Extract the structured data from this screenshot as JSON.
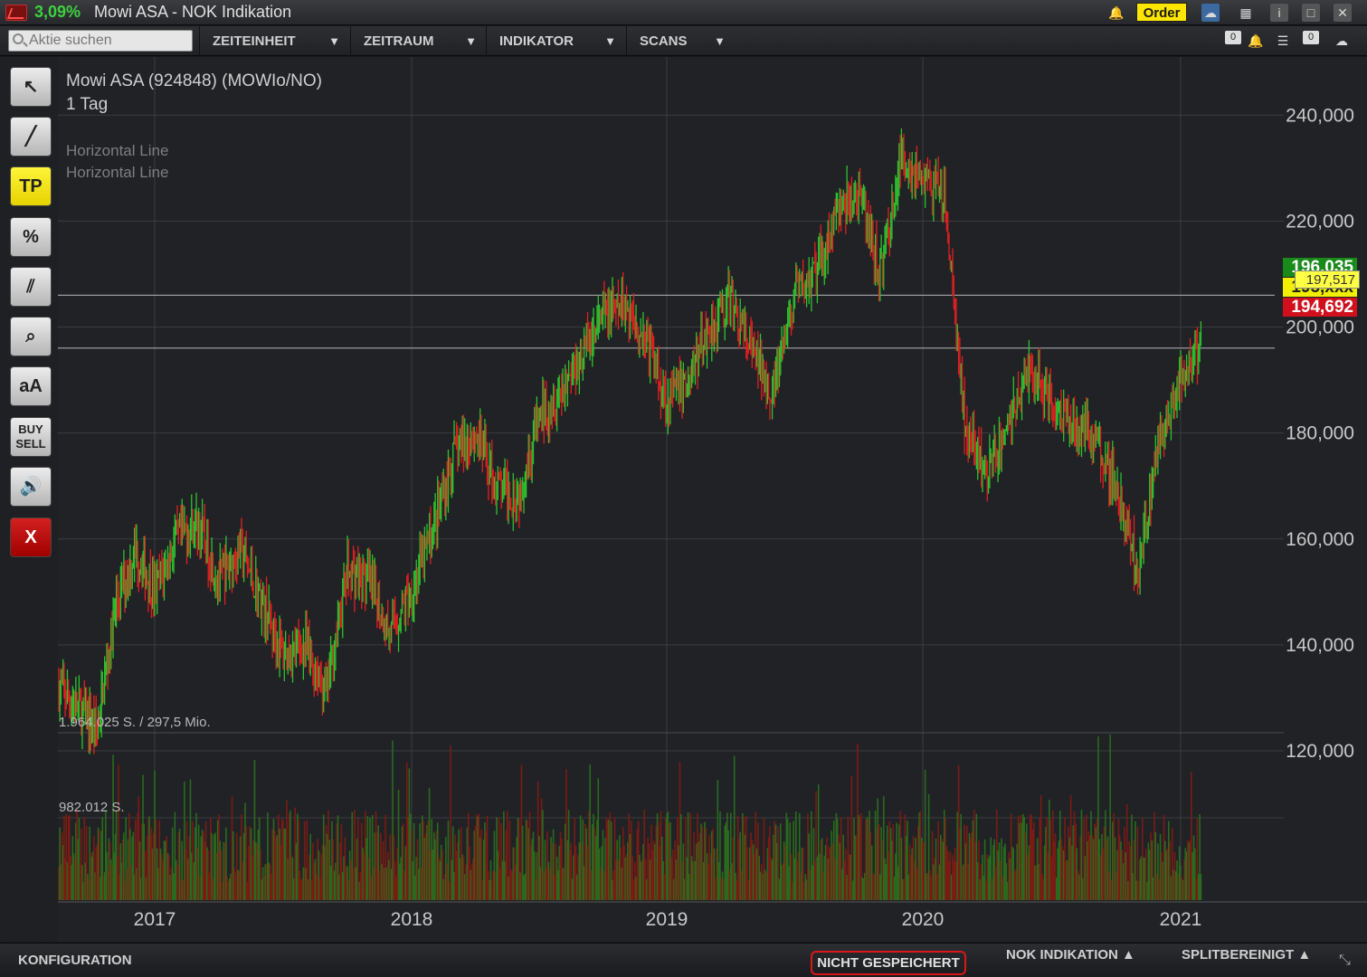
{
  "window": {
    "change_pct": "3,09%",
    "title": "Mowi ASA - NOK Indikation",
    "order_label": "Order"
  },
  "toolbar": {
    "search_placeholder": "Aktie suchen",
    "menus": [
      "ZEITEINHEIT",
      "ZEITRAUM",
      "INDIKATOR",
      "SCANS"
    ],
    "counter_a": "0",
    "counter_b": "0"
  },
  "tools": [
    {
      "name": "pointer-tool",
      "icon": "pointer-icon",
      "label": ""
    },
    {
      "name": "line-tool",
      "icon": "line-icon",
      "label": ""
    },
    {
      "name": "tp-tool",
      "icon": "tp-icon",
      "label": "TP"
    },
    {
      "name": "percent-tool",
      "icon": "percent-icon",
      "label": "%"
    },
    {
      "name": "channel-tool",
      "icon": "parallel-lines-icon",
      "label": ""
    },
    {
      "name": "zoom-tool",
      "icon": "magnifier-icon",
      "label": ""
    },
    {
      "name": "text-tool",
      "icon": "text-icon",
      "label": "aA"
    },
    {
      "name": "buy-sell-tool",
      "icon": "buy-sell-icon",
      "label": "BUY SELL"
    },
    {
      "name": "sound-tool",
      "icon": "speaker-icon",
      "label": ""
    },
    {
      "name": "close-tool",
      "icon": "close-icon",
      "label": "X"
    }
  ],
  "chart": {
    "symbol": "Mowi ASA (924848) (MOWIo/NO)",
    "timeframe": "1 Tag",
    "annotations": [
      "Horizontal Line",
      "Horizontal Line"
    ],
    "volume_top_label": "1.964.025 S. / 297,5 Mio.",
    "volume_mid_label": "982.012 S.",
    "price_tags": {
      "green": "196,035",
      "yellow": "195,xxx",
      "last": "197,517",
      "red": "194,692"
    },
    "colors": {
      "up": "#2ec22e",
      "down": "#e02020",
      "background": "#202226",
      "grid": "#3a3c40"
    }
  },
  "chart_data": {
    "type": "candlestick",
    "title": "Mowi ASA (924848) (MOWIo/NO)",
    "timeframe": "1 Tag",
    "x_ticks": [
      "2017",
      "2018",
      "2019",
      "2020",
      "2021"
    ],
    "y_ticks": [
      "240,000",
      "220,000",
      "200,000",
      "180,000",
      "160,000",
      "140,000",
      "120,000"
    ],
    "ylim": [
      120,
      245
    ],
    "horizontal_lines": [
      206,
      196.035
    ],
    "grid": true,
    "price_path": [
      [
        "2016-08",
        132
      ],
      [
        "2016-09",
        128
      ],
      [
        "2016-10",
        124
      ],
      [
        "2016-11",
        148
      ],
      [
        "2016-12",
        158
      ],
      [
        "2017-01",
        150
      ],
      [
        "2017-02",
        160
      ],
      [
        "2017-03",
        163
      ],
      [
        "2017-04",
        152
      ],
      [
        "2017-05",
        158
      ],
      [
        "2017-06",
        148
      ],
      [
        "2017-07",
        138
      ],
      [
        "2017-08",
        140
      ],
      [
        "2017-09",
        131
      ],
      [
        "2017-10",
        154
      ],
      [
        "2017-11",
        152
      ],
      [
        "2017-12",
        142
      ],
      [
        "2018-01",
        150
      ],
      [
        "2018-02",
        162
      ],
      [
        "2018-03",
        176
      ],
      [
        "2018-04",
        180
      ],
      [
        "2018-05",
        170
      ],
      [
        "2018-06",
        168
      ],
      [
        "2018-07",
        183
      ],
      [
        "2018-08",
        188
      ],
      [
        "2018-09",
        195
      ],
      [
        "2018-10",
        202
      ],
      [
        "2018-11",
        204
      ],
      [
        "2018-12",
        198
      ],
      [
        "2019-01",
        186
      ],
      [
        "2019-02",
        190
      ],
      [
        "2019-03",
        200
      ],
      [
        "2019-04",
        205
      ],
      [
        "2019-05",
        195
      ],
      [
        "2019-06",
        188
      ],
      [
        "2019-07",
        206
      ],
      [
        "2019-08",
        210
      ],
      [
        "2019-09",
        222
      ],
      [
        "2019-10",
        225
      ],
      [
        "2019-11",
        210
      ],
      [
        "2019-12",
        232
      ],
      [
        "2020-01",
        228
      ],
      [
        "2020-02",
        224
      ],
      [
        "2020-03",
        180
      ],
      [
        "2020-04",
        172
      ],
      [
        "2020-05",
        182
      ],
      [
        "2020-06",
        192
      ],
      [
        "2020-07",
        186
      ],
      [
        "2020-08",
        182
      ],
      [
        "2020-09",
        180
      ],
      [
        "2020-10",
        170
      ],
      [
        "2020-11",
        154
      ],
      [
        "2020-12",
        178
      ],
      [
        "2021-01",
        190
      ],
      [
        "2021-02",
        196
      ]
    ],
    "volume_ylim": [
      0,
      1964025
    ]
  },
  "statusbar": {
    "config": "KONFIGURATION",
    "not_saved": "NICHT GESPEICHERT",
    "indication": "NOK INDIKATION ▲",
    "split": "SPLITBEREINIGT ▲"
  }
}
